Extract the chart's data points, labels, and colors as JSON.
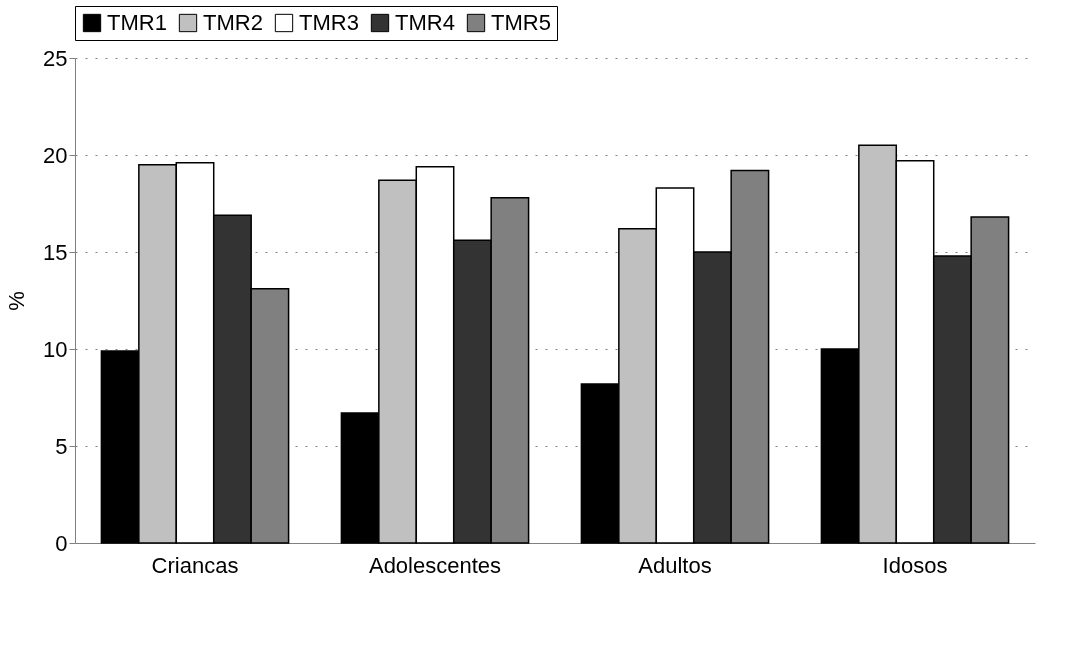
{
  "chart_data": {
    "type": "bar",
    "ylabel": "%",
    "categories": [
      "Criancas",
      "Adolescentes",
      "Adultos",
      "Idosos"
    ],
    "series": [
      {
        "name": "TMR1",
        "color": "#000000",
        "values": [
          9.9,
          6.7,
          8.2,
          10.0
        ]
      },
      {
        "name": "TMR2",
        "color": "#c0c0c0",
        "values": [
          19.5,
          18.7,
          16.2,
          20.5
        ]
      },
      {
        "name": "TMR3",
        "color": "#ffffff",
        "values": [
          19.6,
          19.4,
          18.3,
          19.7
        ]
      },
      {
        "name": "TMR4",
        "color": "#333333",
        "values": [
          16.9,
          15.6,
          15.0,
          14.8
        ]
      },
      {
        "name": "TMR5",
        "color": "#808080",
        "values": [
          13.1,
          17.8,
          19.2,
          16.8
        ]
      }
    ],
    "ylim": [
      0,
      25
    ],
    "yticks": [
      0,
      5,
      10,
      15,
      20,
      25
    ],
    "grid": "y",
    "legend": "top"
  }
}
